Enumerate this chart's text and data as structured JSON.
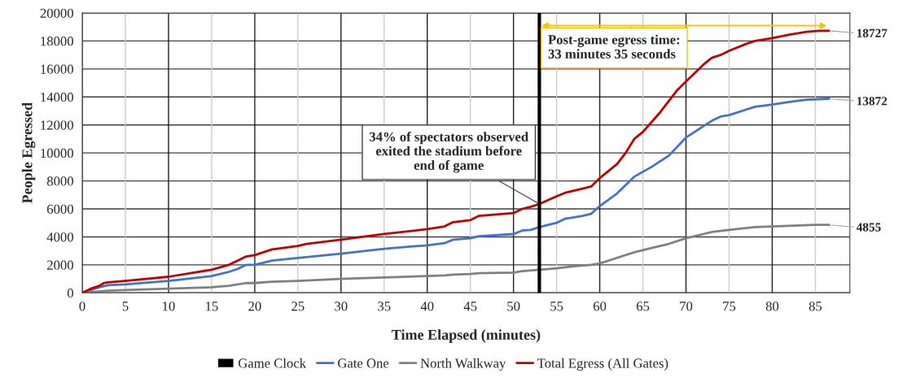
{
  "chart_data": {
    "type": "line",
    "xlabel": "Time Elapsed (minutes)",
    "ylabel": "People Egressed",
    "xlim": [
      0,
      89
    ],
    "xticks": [
      0,
      5,
      10,
      15,
      20,
      25,
      30,
      35,
      40,
      45,
      50,
      55,
      60,
      65,
      70,
      75,
      80,
      85
    ],
    "ylim": [
      0,
      20000
    ],
    "yticks": [
      0,
      2000,
      4000,
      6000,
      8000,
      10000,
      12000,
      14000,
      16000,
      18000,
      20000
    ],
    "grid": true,
    "legend": "bottom",
    "marker": "none",
    "line_style": "solid",
    "series": [
      {
        "name": "Game Clock",
        "color": "#000000",
        "x": [
          53,
          53
        ],
        "values": [
          0,
          20000
        ]
      },
      {
        "name": "Gate One",
        "color": "#4472c4",
        "x": [
          0,
          2,
          3,
          5,
          10,
          15,
          17,
          18,
          19,
          20,
          22,
          25,
          30,
          35,
          40,
          42,
          43,
          45,
          46,
          50,
          51,
          52,
          53,
          55,
          56,
          58,
          59,
          60,
          62,
          63,
          64,
          66,
          68,
          70,
          71,
          72,
          73,
          74,
          75,
          77,
          78,
          80,
          82,
          84,
          86.6
        ],
        "values": [
          0,
          400,
          550,
          600,
          850,
          1200,
          1500,
          1700,
          2000,
          2000,
          2300,
          2500,
          2800,
          3150,
          3400,
          3550,
          3800,
          3900,
          4050,
          4200,
          4450,
          4500,
          4700,
          5000,
          5300,
          5500,
          5650,
          6200,
          7100,
          7700,
          8300,
          9000,
          9800,
          11100,
          11500,
          11900,
          12300,
          12600,
          12700,
          13100,
          13300,
          13450,
          13650,
          13800,
          13872
        ],
        "value_labels": [
          null,
          null,
          null,
          null,
          null,
          null,
          null,
          null,
          null,
          null,
          null,
          null,
          null,
          null,
          null,
          null,
          null,
          null,
          null,
          null,
          null,
          null,
          null,
          null,
          null,
          null,
          null,
          null,
          null,
          null,
          null,
          null,
          null,
          null,
          null,
          null,
          null,
          null,
          null,
          null,
          null,
          null,
          null,
          null,
          "13872"
        ]
      },
      {
        "name": "North Walkway",
        "color": "#808080",
        "x": [
          0,
          3,
          5,
          10,
          15,
          17,
          19,
          20,
          22,
          25,
          30,
          35,
          40,
          42,
          43,
          45,
          46,
          50,
          51,
          53,
          55,
          57,
          59,
          60,
          62,
          64,
          66,
          68,
          70,
          72,
          73,
          75,
          78,
          80,
          85,
          86.6
        ],
        "values": [
          0,
          150,
          200,
          300,
          400,
          500,
          700,
          700,
          800,
          850,
          1000,
          1100,
          1200,
          1250,
          1300,
          1350,
          1400,
          1450,
          1550,
          1650,
          1750,
          1900,
          2000,
          2100,
          2500,
          2900,
          3200,
          3500,
          3900,
          4200,
          4350,
          4500,
          4700,
          4750,
          4855,
          4855
        ],
        "value_labels": [
          null,
          null,
          null,
          null,
          null,
          null,
          null,
          null,
          null,
          null,
          null,
          null,
          null,
          null,
          null,
          null,
          null,
          null,
          null,
          null,
          null,
          null,
          null,
          null,
          null,
          null,
          null,
          null,
          null,
          null,
          null,
          null,
          null,
          null,
          null,
          "4855"
        ]
      },
      {
        "name": "Total Egress (All Gates)",
        "color": "#c00000",
        "x": [
          0,
          1,
          2,
          2.5,
          3,
          5,
          10,
          15,
          17,
          18,
          19,
          20,
          21,
          22,
          25,
          26,
          30,
          33,
          35,
          40,
          42,
          43,
          45,
          46,
          48,
          50,
          51,
          52,
          53,
          55,
          56,
          57,
          58,
          59,
          60,
          62,
          63,
          64,
          65,
          66,
          67,
          68,
          69,
          70,
          71,
          72,
          73,
          74,
          75,
          77,
          78,
          80,
          82,
          84,
          85.5,
          86.6
        ],
        "values": [
          0,
          300,
          500,
          700,
          750,
          850,
          1150,
          1650,
          2000,
          2300,
          2600,
          2700,
          2900,
          3100,
          3350,
          3500,
          3800,
          4050,
          4200,
          4550,
          4750,
          5050,
          5200,
          5500,
          5600,
          5700,
          6000,
          6150,
          6350,
          6900,
          7150,
          7300,
          7450,
          7600,
          8200,
          9200,
          10000,
          11000,
          11500,
          12200,
          12900,
          13700,
          14500,
          15100,
          15700,
          16300,
          16800,
          17000,
          17300,
          17800,
          18000,
          18200,
          18450,
          18650,
          18727,
          18727
        ],
        "value_labels": [
          null,
          null,
          null,
          null,
          null,
          null,
          null,
          null,
          null,
          null,
          null,
          null,
          null,
          null,
          null,
          null,
          null,
          null,
          null,
          null,
          null,
          null,
          null,
          null,
          null,
          null,
          null,
          null,
          null,
          null,
          null,
          null,
          null,
          null,
          null,
          null,
          null,
          null,
          null,
          null,
          null,
          null,
          null,
          null,
          null,
          null,
          null,
          null,
          null,
          null,
          null,
          null,
          null,
          null,
          null,
          "18727"
        ]
      }
    ],
    "annotations": [
      {
        "text": "34% of spectators observed\nexited the stadium before\nend of game",
        "x": 53,
        "y": 6350
      },
      "Post-game egress time:\n33 minutes 35 seconds"
    ]
  }
}
